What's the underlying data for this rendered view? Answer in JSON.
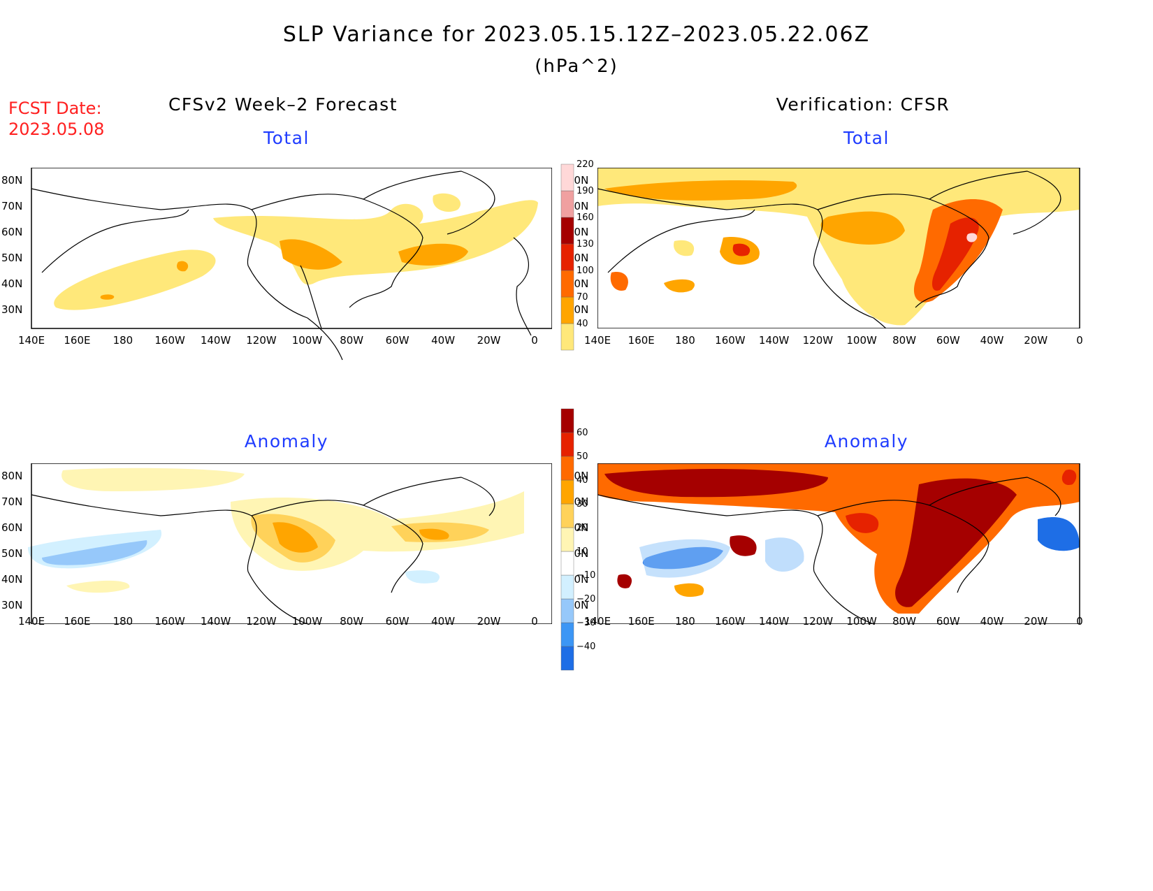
{
  "header": {
    "title": "SLP Variance for 2023.05.15.12Z–2023.05.22.06Z",
    "units": "(hPa^2)",
    "fcst_label": "FCST Date:",
    "fcst_date": "2023.05.08"
  },
  "columns": {
    "left_title": "CFSv2 Week–2 Forecast",
    "right_title": "Verification: CFSR"
  },
  "panels": {
    "top_left_subtitle": "Total",
    "top_right_subtitle": "Total",
    "bottom_left_subtitle": "Anomaly",
    "bottom_right_subtitle": "Anomaly"
  },
  "axes": {
    "lon_labels": [
      "140E",
      "160E",
      "180",
      "160W",
      "140W",
      "120W",
      "100W",
      "80W",
      "60W",
      "40W",
      "20W",
      "0"
    ],
    "lat_labels": [
      "80N",
      "70N",
      "60N",
      "50N",
      "40N",
      "30N"
    ]
  },
  "colorbars": {
    "total": {
      "levels": [
        "40",
        "70",
        "100",
        "130",
        "160",
        "190",
        "220"
      ],
      "colors": [
        "#ffe87a",
        "#ffa500",
        "#ff6a00",
        "#e62200",
        "#a50000",
        "#f0a0a0",
        "#ffd8d8"
      ]
    },
    "anomaly": {
      "levels": [
        "−40",
        "−30",
        "−20",
        "−10",
        "10",
        "20",
        "30",
        "40",
        "50",
        "60"
      ],
      "colors": [
        "#1e6ee6",
        "#3c96f5",
        "#96c8fa",
        "#d2f0ff",
        "#ffffff",
        "#fff5b4",
        "#ffd25a",
        "#ffa500",
        "#ff6a00",
        "#e62200",
        "#a50000"
      ]
    }
  },
  "colors": {
    "title_blue": "#1f3cff",
    "fcst_red": "#ff2020"
  }
}
